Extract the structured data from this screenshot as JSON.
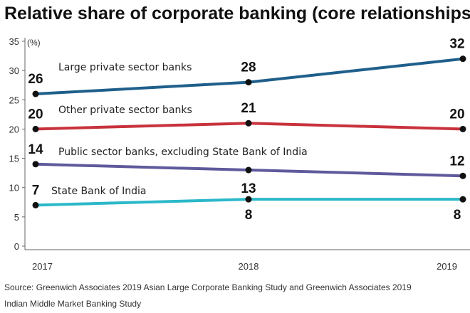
{
  "chart_data": {
    "type": "line",
    "title": "Relative share of corporate banking (core relationships)",
    "ylabel": "(%)",
    "xlabel": "",
    "x": [
      "2017",
      "2018",
      "2019"
    ],
    "ylim": [
      0,
      35
    ],
    "yticks": [
      0,
      5,
      10,
      15,
      20,
      25,
      30,
      35
    ],
    "grid": false,
    "series": [
      {
        "name": "Large private sector banks",
        "values": [
          26,
          28,
          32
        ],
        "color": "#1f5f8b"
      },
      {
        "name": "Other private sector banks",
        "values": [
          20,
          21,
          20
        ],
        "color": "#c8323c"
      },
      {
        "name": "Public sector banks, excluding State Bank of India",
        "values": [
          14,
          13,
          12
        ],
        "color": "#5e5a9c"
      },
      {
        "name": "State Bank of India",
        "values": [
          7,
          8,
          8
        ],
        "color": "#2bb8c9"
      }
    ],
    "source": [
      "Source: Greenwich Associates 2019 Asian Large Corporate Banking Study and Greenwich Associates 2019",
      "Indian Middle Market Banking Study"
    ]
  }
}
